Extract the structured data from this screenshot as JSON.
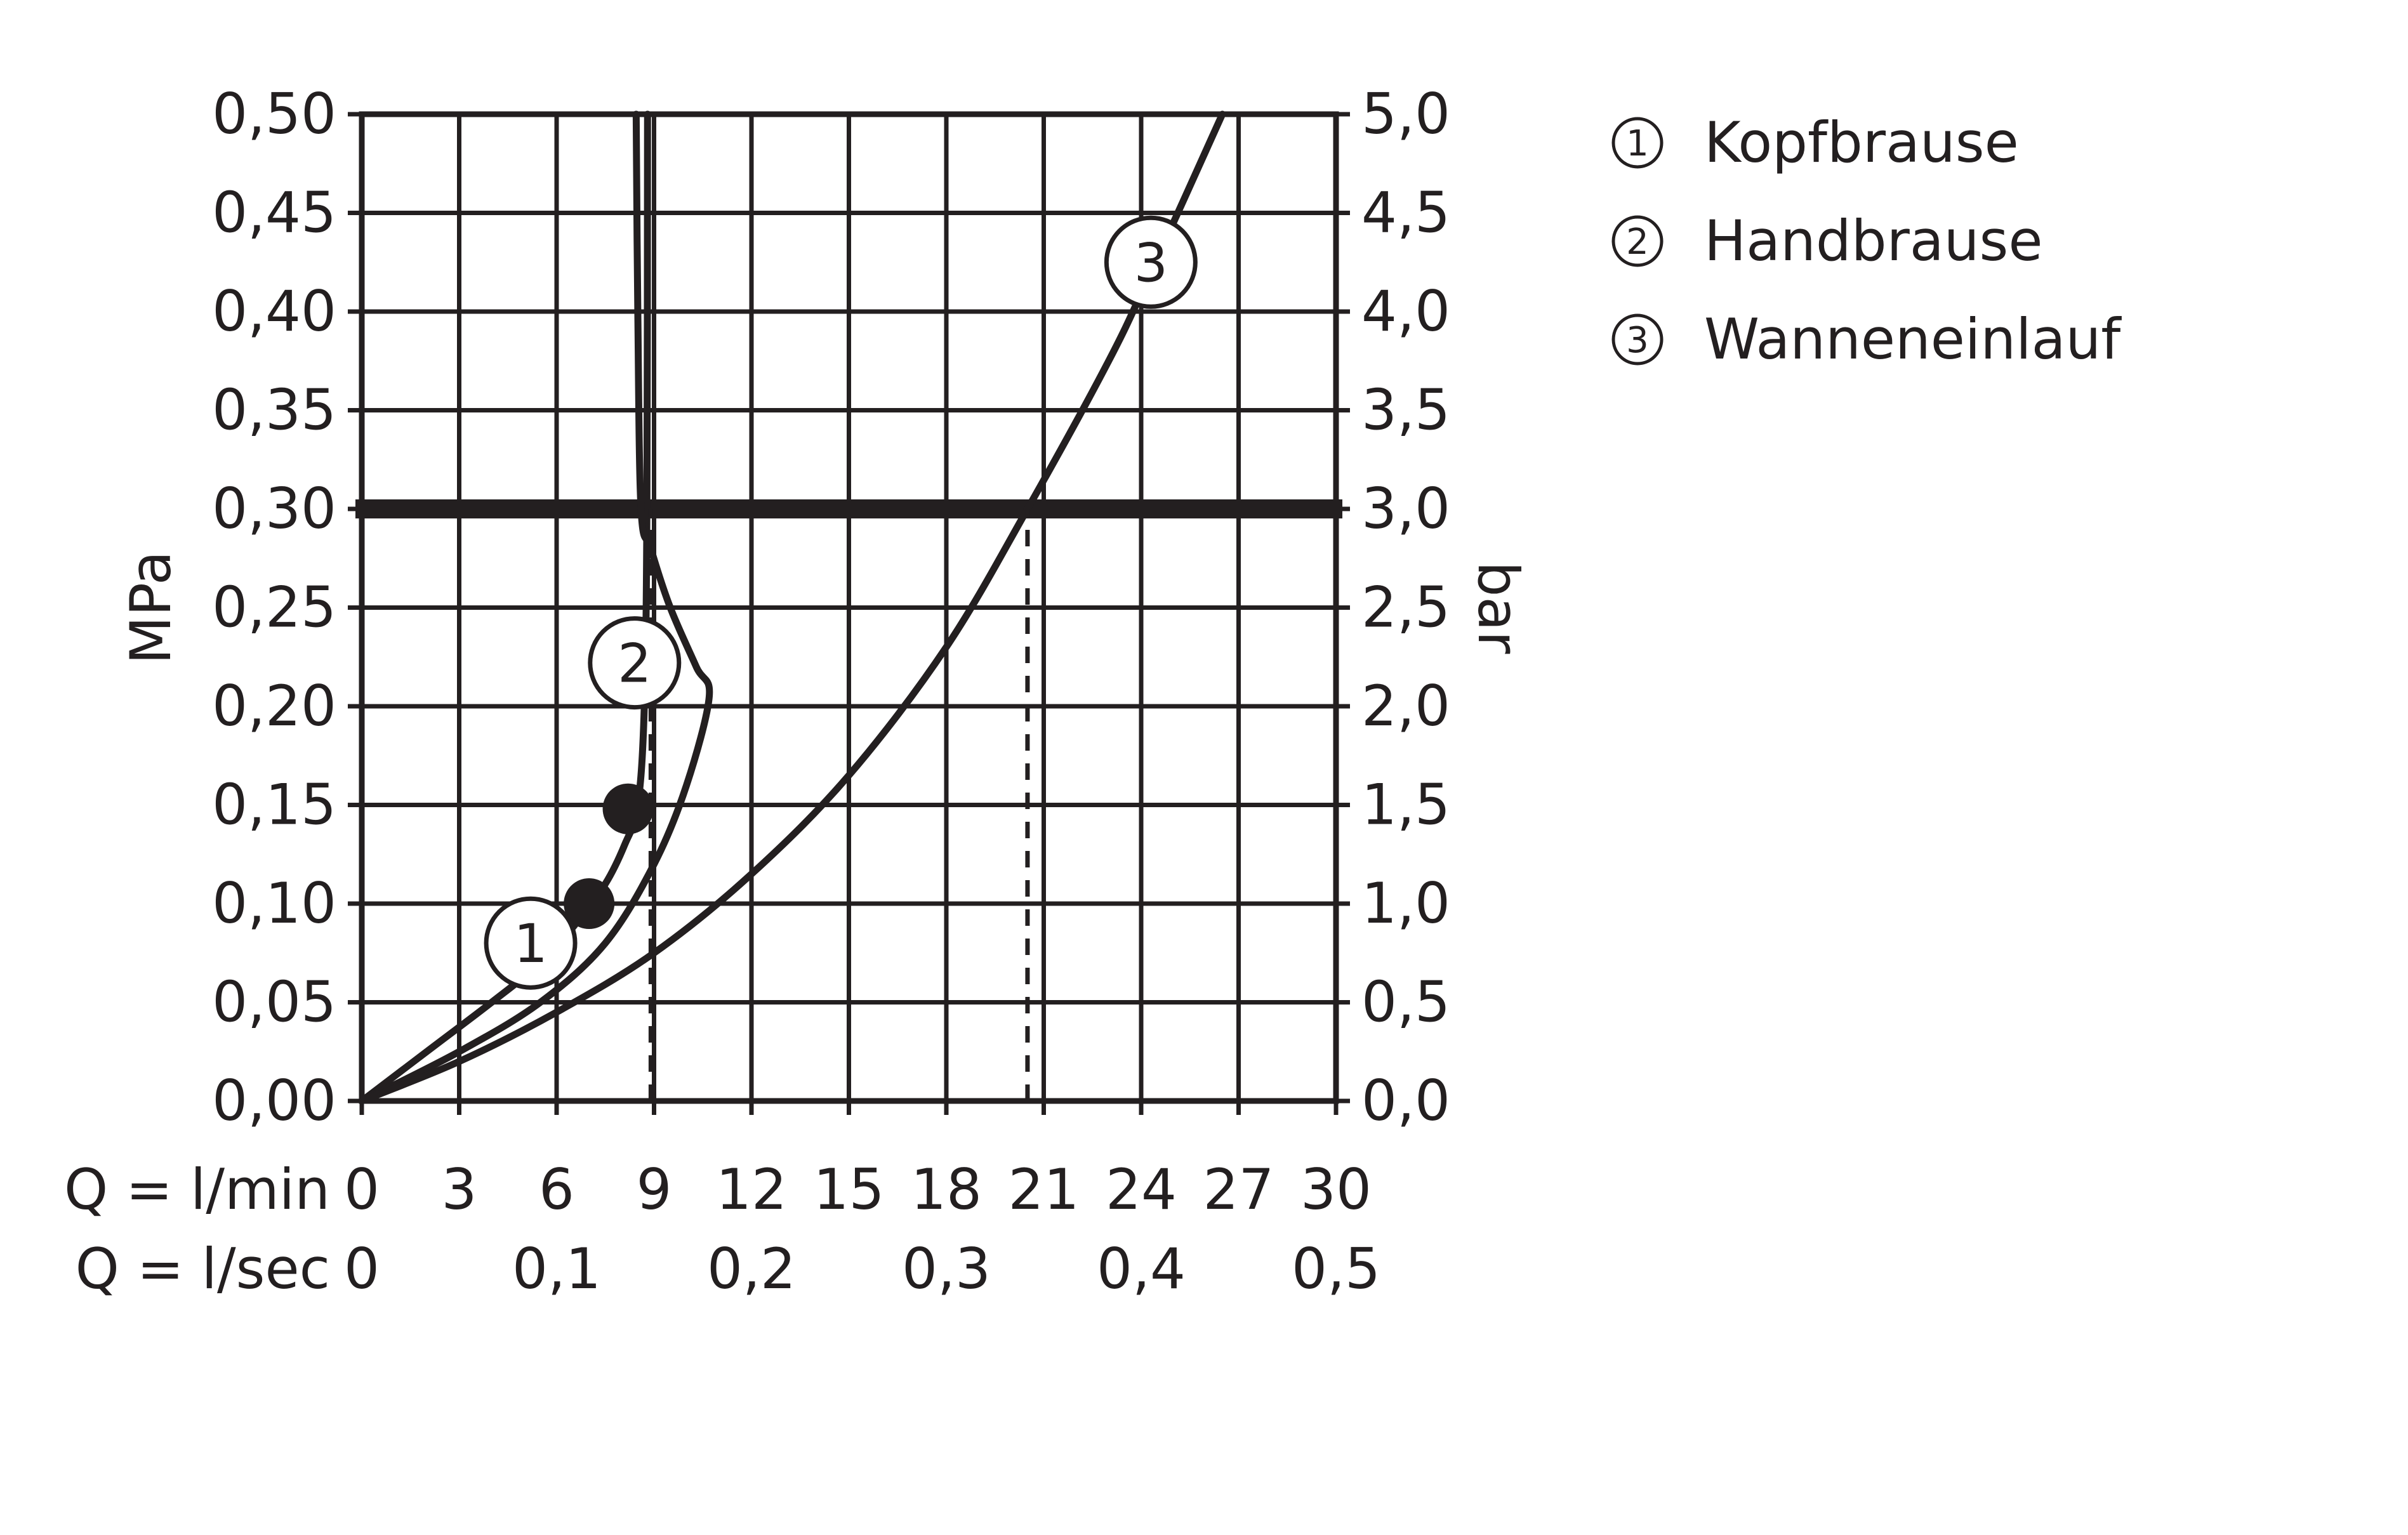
{
  "chart_data": {
    "type": "line",
    "title": "",
    "y_left": {
      "label": "MPa",
      "range": [
        0,
        0.5
      ],
      "ticks": [
        "0,00",
        "0,05",
        "0,10",
        "0,15",
        "0,20",
        "0,25",
        "0,30",
        "0,35",
        "0,40",
        "0,45",
        "0,50"
      ]
    },
    "y_right": {
      "label": "bar",
      "range": [
        0,
        5
      ],
      "ticks": [
        "0,0",
        "0,5",
        "1,0",
        "1,5",
        "2,0",
        "2,5",
        "3,0",
        "3,5",
        "4,0",
        "4,5",
        "5,0"
      ]
    },
    "x_primary": {
      "label": "Q = l/min",
      "range": [
        0,
        30
      ],
      "ticks": [
        "0",
        "3",
        "6",
        "9",
        "12",
        "15",
        "18",
        "21",
        "24",
        "27",
        "30"
      ]
    },
    "x_secondary": {
      "label": "Q = l/sec",
      "ticks": [
        {
          "label": "0",
          "value": 0
        },
        {
          "label": "0,1",
          "value": 6
        },
        {
          "label": "0,2",
          "value": 12
        },
        {
          "label": "0,3",
          "value": 18
        },
        {
          "label": "0,4",
          "value": 24
        },
        {
          "label": "0,5",
          "value": 30
        }
      ]
    },
    "grid": true,
    "reference_line": {
      "y": 0.3
    },
    "series": [
      {
        "marker": "1",
        "label": "Kopfbrause",
        "x": [
          0,
          2,
          4,
          5.5,
          6.6,
          7.5,
          8.1,
          8.5,
          8.7,
          8.78,
          8.8
        ],
        "y": [
          0,
          0.025,
          0.05,
          0.07,
          0.09,
          0.11,
          0.13,
          0.15,
          0.2,
          0.3,
          0.5
        ],
        "label_pos": {
          "x": 5.2,
          "y": 0.08
        }
      },
      {
        "marker": "2",
        "label": "Handbrause",
        "x": [
          0,
          3,
          5.5,
          7.5,
          9,
          10,
          10.7,
          10.3,
          9.5,
          8.9,
          8.6,
          8.5,
          8.45
        ],
        "y": [
          0,
          0.025,
          0.05,
          0.08,
          0.12,
          0.16,
          0.205,
          0.22,
          0.25,
          0.28,
          0.3,
          0.4,
          0.5
        ],
        "label_pos": {
          "x": 8.4,
          "y": 0.222
        }
      },
      {
        "marker": "3",
        "label": "Wanneneinlauf",
        "x": [
          0,
          3,
          6,
          9,
          12,
          15,
          18,
          20.5,
          23,
          24.3,
          26.5
        ],
        "y": [
          0,
          0.02,
          0.045,
          0.075,
          0.115,
          0.165,
          0.23,
          0.3,
          0.375,
          0.42,
          0.5
        ],
        "label_pos": {
          "x": 24.3,
          "y": 0.425
        }
      }
    ],
    "filled_markers": [
      {
        "x": 7,
        "y": 0.1
      },
      {
        "x": 8.2,
        "y": 0.148
      }
    ],
    "dashed_verticals": [
      {
        "x": 8.9,
        "y_top": 0.3
      },
      {
        "x": 20.5,
        "y_top": 0.3
      }
    ],
    "legend": {
      "position": "top-right",
      "items": [
        {
          "num": "1",
          "label": "Kopfbrause"
        },
        {
          "num": "2",
          "label": "Handbrause"
        },
        {
          "num": "3",
          "label": "Wanneneinlauf"
        }
      ]
    },
    "colors": {
      "ink": "#231f20",
      "background": "#ffffff"
    }
  }
}
